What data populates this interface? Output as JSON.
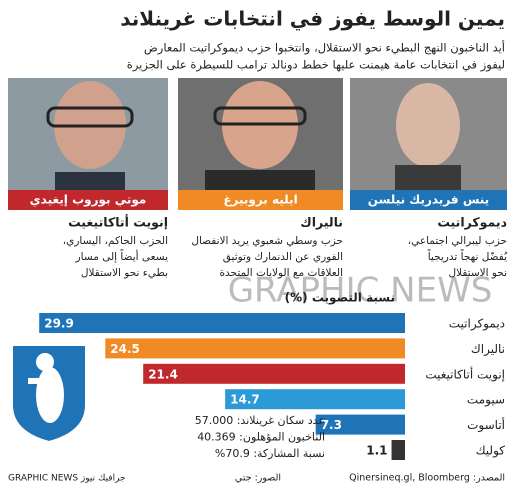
{
  "header": {
    "title": "يمين الوسط يفوز في انتخابات غرينلاند",
    "subtitle": [
      "أيد الناخبون النهج البطيء نحو الاستقلال، وانتخبوا حزب ديموكراتيت المعارض",
      "ليفوز في انتخابات عامة هيمنت عليها خطط دونالد ترامب للسيطرة على الجزيرة"
    ]
  },
  "candidates": [
    {
      "name": "ينس فريدريك نيلسن",
      "color": "#1f73b7",
      "party": "ديموكراتيت",
      "description": [
        "حزب ليبرالي اجتماعي،",
        "يُفضّل نهجاً تدريجياً",
        "نحو الاستقلال"
      ]
    },
    {
      "name": "ايليه بروبيرغ",
      "color": "#f08a24",
      "party": "ناليراك",
      "description": [
        "حزب وسطي شعبوي يريد الانفصال",
        "الفوري عن الدنمارك وتوثيق",
        "العلاقات مع الولايات المتحدة"
      ]
    },
    {
      "name": "موتي بوروب إيغيدي",
      "color": "#c0282d",
      "party": "إنويت أتاكاتيغيت",
      "description": [
        "الحزب الحاكم، اليساري،",
        "يسعى أيضاً إلى مسار",
        "بطيء نحو الاستقلال"
      ]
    }
  ],
  "chart_data": {
    "type": "bar",
    "orientation": "horizontal",
    "title": "نسبة التصويت (%)",
    "categories": [
      "ديموكراتيت",
      "ناليراك",
      "إنويت أتاكاتيغيت",
      "سيومت",
      "أتاسوت",
      "كوليك"
    ],
    "values": [
      29.9,
      24.5,
      21.4,
      14.7,
      7.3,
      1.1
    ],
    "colors": [
      "#1f73b7",
      "#f08a24",
      "#c0282d",
      "#2b9ad6",
      "#1f73b7",
      "#333333"
    ],
    "xlim": [
      0,
      30
    ]
  },
  "stats": [
    "عدد سكان غرينلاند: 57.000",
    "الناخبون المؤهلون: 40.369",
    "نسبة المشاركة: 70.9%"
  ],
  "watermark": "GRAPHIC NEWS",
  "footer": {
    "source": "المصدر: Qinersineq.gl, Bloomberg",
    "photos": "الصور: جتي",
    "brand": "GRAPHIC NEWS جرافيك نيوز"
  }
}
